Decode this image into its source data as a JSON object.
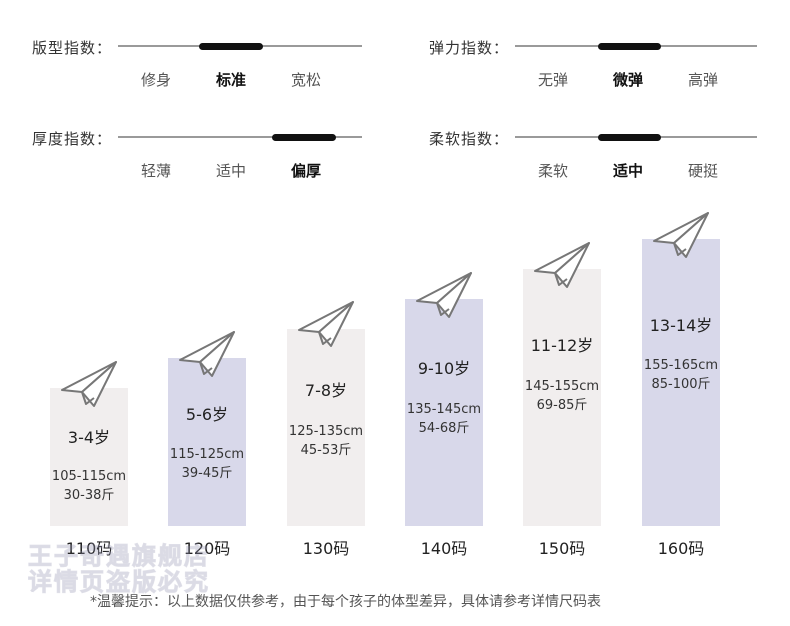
{
  "indices": [
    {
      "label": "版型指数：",
      "options": [
        "修身",
        "标准",
        "宽松"
      ],
      "selected": 1
    },
    {
      "label": "弹力指数：",
      "options": [
        "无弹",
        "微弹",
        "高弹"
      ],
      "selected": 1
    },
    {
      "label": "厚度指数：",
      "options": [
        "轻薄",
        "适中",
        "偏厚"
      ],
      "selected": 2
    },
    {
      "label": "柔软指数：",
      "options": [
        "柔软",
        "适中",
        "硬挺"
      ],
      "selected": 1
    }
  ],
  "sizes": [
    {
      "size": "110码",
      "age": "3-4岁",
      "height": "105-115cm",
      "weight": "30-38斤",
      "color": "#f1eeee"
    },
    {
      "size": "120码",
      "age": "5-6岁",
      "height": "115-125cm",
      "weight": "39-45斤",
      "color": "#d8d8ea"
    },
    {
      "size": "130码",
      "age": "7-8岁",
      "height": "125-135cm",
      "weight": "45-53斤",
      "color": "#f1eeee"
    },
    {
      "size": "140码",
      "age": "9-10岁",
      "height": "135-145cm",
      "weight": "54-68斤",
      "color": "#d8d8ea"
    },
    {
      "size": "150码",
      "age": "11-12岁",
      "height": "145-155cm",
      "weight": "69-85斤",
      "color": "#f1eeee"
    },
    {
      "size": "160码",
      "age": "13-14岁",
      "height": "155-165cm",
      "weight": "85-100斤",
      "color": "#d8d8ea"
    }
  ],
  "watermark": [
    "王子奇遇旗舰店",
    "详情页盗版必究"
  ],
  "note": "*温馨提示：以上数据仅供参考，由于每个孩子的体型差异，具体请参考详情尺码表",
  "icons": {
    "plane": "paper-plane-icon"
  }
}
